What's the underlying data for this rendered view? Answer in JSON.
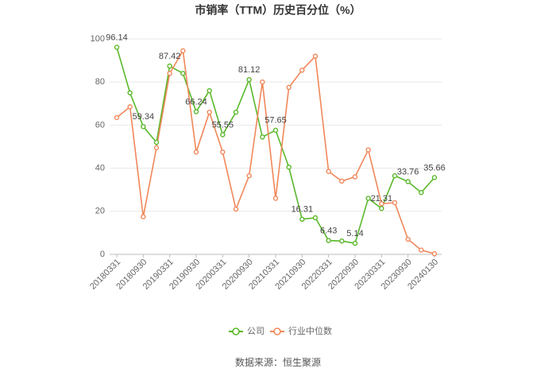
{
  "chart_data": {
    "type": "line",
    "title": "市销率（TTM）历史百分位（%）",
    "categories": [
      "20180331",
      null,
      "20180930",
      null,
      "20190331",
      null,
      "20190930",
      null,
      "20200331",
      null,
      "20200930",
      null,
      "20210331",
      null,
      "20210930",
      null,
      "20220331",
      null,
      "20220930",
      null,
      "20230331",
      null,
      "20230930",
      null,
      "20240130"
    ],
    "series": [
      {
        "name": "公司",
        "color": "#5ab82b",
        "values": [
          96.14,
          75,
          59.34,
          52,
          87.42,
          84,
          66.24,
          76,
          55.55,
          66,
          81.12,
          54.5,
          57.65,
          40.5,
          16.31,
          17,
          6.43,
          6.2,
          5.14,
          26,
          21.31,
          36.5,
          33.76,
          28.7,
          35.66
        ]
      },
      {
        "name": "行业中位数",
        "color": "#f0875a",
        "values": [
          63.5,
          68.5,
          17.5,
          49.5,
          84,
          94.5,
          47.5,
          66,
          47.5,
          21,
          36.5,
          80,
          26,
          77.5,
          85.5,
          92,
          38.5,
          34,
          36,
          48.5,
          23.5,
          24,
          7,
          2,
          0.3
        ]
      }
    ],
    "ylim": [
      0,
      100
    ],
    "yticks": [
      0,
      20,
      40,
      60,
      80,
      100
    ],
    "grid": true,
    "source": "数据来源：恒生聚源"
  }
}
